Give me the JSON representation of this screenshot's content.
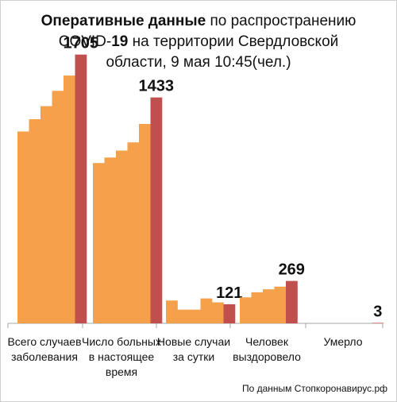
{
  "title": {
    "part1_bold": "Оперативные данные",
    "part2": " по распространению",
    "part3": "COVID-",
    "part4_bold": "19",
    "part5": " на территории Свердловской",
    "line3": "области, 9 мая 10:45(чел.)"
  },
  "source": "По данным Стопкоронавирус.рф",
  "colors": {
    "history": "#f5a04a",
    "current": "#c0504d",
    "axis": "#a6a6a6"
  },
  "chart_data": {
    "type": "bar",
    "title": "Оперативные данные по распространению COVID-19 на территории Свердловской области, 9 мая 10:45(чел.)",
    "categories": [
      "Всего случаев заболевания",
      "Число больных в настоящее время",
      "Новые случаи за сутки",
      "Человек выздоровело",
      "Умерло"
    ],
    "groups": [
      {
        "label": "Всего случаев заболевания",
        "history": [
          1217,
          1295,
          1378,
          1475,
          1572
        ],
        "current": 1705,
        "data_label": "1705"
      },
      {
        "label": "Число больных в настоящее время",
        "history": [
          1017,
          1052,
          1096,
          1148,
          1265
        ],
        "current": 1433,
        "data_label": "1433"
      },
      {
        "label": "Новые случаи за сутки",
        "history": [
          145,
          87,
          87,
          158,
          133
        ],
        "current": 121,
        "data_label": "121"
      },
      {
        "label": "Человек выздоровело",
        "history": [
          165,
          197,
          216,
          233
        ],
        "current": 269,
        "data_label": "269"
      },
      {
        "label": "Умерло",
        "history": [
          0,
          0,
          0,
          0,
          0
        ],
        "current": 3,
        "data_label": "3"
      }
    ],
    "ylim": [
      0,
      1900
    ],
    "grid": false,
    "legend": "none"
  }
}
